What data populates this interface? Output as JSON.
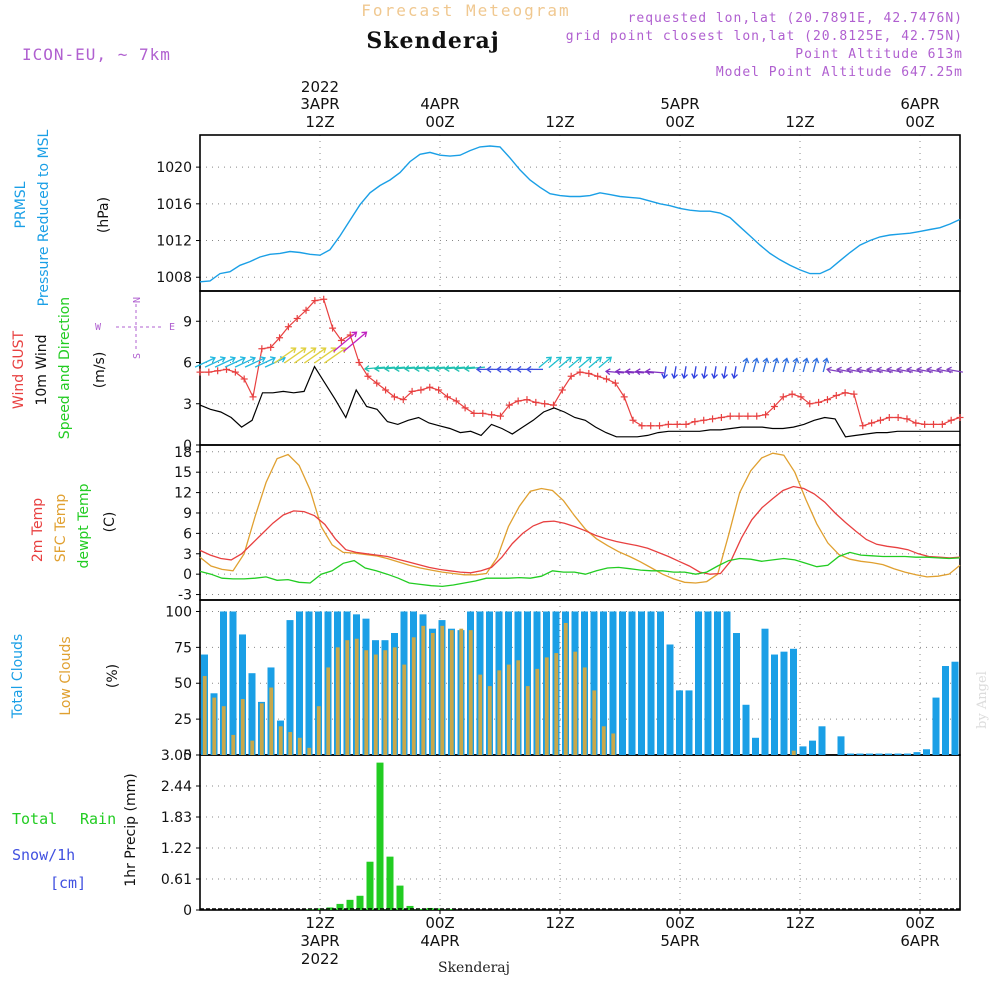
{
  "header": {
    "forecast_title": "Forecast Meteogram",
    "location": "Skenderaj",
    "model": "ICON-EU, ~ 7km",
    "requested": "requested lon,lat (20.7891E, 42.7476N)",
    "gridpoint": "grid point closest lon,lat (20.8125E, 42.75N)",
    "point_alt": "Point Altitude 613m",
    "model_alt": "Model Point Altitude 647.25m",
    "footer": "Skenderaj",
    "credit": "by Angel"
  },
  "colors": {
    "pressure": "#1a9fe6",
    "gust": "#e84040",
    "wind": "#000000",
    "green": "#22cc22",
    "orange": "#e0a030",
    "purple": "#b060d0",
    "blue_text": "#4050e0",
    "cloud_total": "#1a9fe6",
    "cloud_low": "#c8a84a",
    "rain": "#22cc22"
  },
  "time_axis": {
    "top_labels": [
      {
        "t": 12,
        "l1": "2022",
        "l2": "3APR",
        "l3": "12Z"
      },
      {
        "t": 24,
        "l1": "",
        "l2": "4APR",
        "l3": "00Z"
      },
      {
        "t": 36,
        "l1": "",
        "l2": "",
        "l3": "12Z"
      },
      {
        "t": 48,
        "l1": "",
        "l2": "5APR",
        "l3": "00Z"
      },
      {
        "t": 60,
        "l1": "",
        "l2": "",
        "l3": "12Z"
      },
      {
        "t": 72,
        "l1": "",
        "l2": "6APR",
        "l3": "00Z"
      }
    ],
    "bottom_labels": [
      {
        "t": 12,
        "l1": "12Z",
        "l2": "3APR",
        "l3": "2022"
      },
      {
        "t": 24,
        "l1": "00Z",
        "l2": "4APR",
        "l3": ""
      },
      {
        "t": 36,
        "l1": "12Z",
        "l2": "",
        "l3": ""
      },
      {
        "t": 48,
        "l1": "00Z",
        "l2": "5APR",
        "l3": ""
      },
      {
        "t": 60,
        "l1": "12Z",
        "l2": "",
        "l3": ""
      },
      {
        "t": 72,
        "l1": "00Z",
        "l2": "6APR",
        "l3": ""
      }
    ]
  },
  "panel_labels": {
    "pressure": [
      "PRMSL",
      "Pressure Reduced to MSL",
      "(hPa)"
    ],
    "wind": [
      "Wind GUST",
      "10m Wind",
      "Speed and Direction",
      "(m/s)"
    ],
    "compass": [
      "N",
      "W",
      "E",
      "S"
    ],
    "temp": [
      "2m Temp",
      "SFC Temp",
      "dewpt Temp",
      "(C)"
    ],
    "cloud": [
      "Total Clouds",
      "Low Clouds",
      "(%)"
    ],
    "rain": [
      "Total",
      "Rain",
      "Snow/1h",
      "[cm]",
      "1hr Precip (mm)"
    ]
  },
  "chart_data": [
    {
      "type": "line",
      "name": "pressure",
      "x_hours_from_start": "0..76",
      "ylim": [
        1006.5,
        1023.5
      ],
      "yticks": [
        "1008",
        "1012",
        "1016",
        "1020"
      ],
      "series": [
        {
          "name": "PRMSL",
          "values": [
            1007.5,
            1007.6,
            1008.4,
            1008.6,
            1009.3,
            1009.7,
            1010.2,
            1010.5,
            1010.6,
            1010.8,
            1010.7,
            1010.5,
            1010.4,
            1011.0,
            1012.5,
            1014.2,
            1015.9,
            1017.2,
            1018.0,
            1018.6,
            1019.4,
            1020.6,
            1021.4,
            1021.6,
            1021.3,
            1021.2,
            1021.3,
            1021.8,
            1022.2,
            1022.3,
            1022.2,
            1021.0,
            1019.7,
            1018.6,
            1017.8,
            1017.1,
            1016.9,
            1016.8,
            1016.8,
            1016.9,
            1017.2,
            1017.0,
            1016.8,
            1016.7,
            1016.6,
            1016.3,
            1016.0,
            1015.8,
            1015.5,
            1015.3,
            1015.2,
            1015.2,
            1015.0,
            1014.5,
            1013.5,
            1012.5,
            1011.5,
            1010.6,
            1009.9,
            1009.3,
            1008.8,
            1008.4,
            1008.4,
            1008.9,
            1009.8,
            1010.7,
            1011.5,
            1012.0,
            1012.4,
            1012.6,
            1012.7,
            1012.8,
            1013.0,
            1013.2,
            1013.4,
            1013.8,
            1014.3
          ]
        }
      ]
    },
    {
      "type": "line",
      "name": "wind",
      "ylim": [
        0,
        11.2
      ],
      "yticks": [
        "0",
        "3",
        "6",
        "9"
      ],
      "series": [
        {
          "name": "Wind GUST",
          "values": [
            5.3,
            5.3,
            5.4,
            5.5,
            5.3,
            4.8,
            3.5,
            7.0,
            7.1,
            7.8,
            8.6,
            9.2,
            9.8,
            10.5,
            10.6,
            8.5,
            7.6,
            8.0,
            6.0,
            5.0,
            4.5,
            4.0,
            3.5,
            3.3,
            3.9,
            4.0,
            4.2,
            4.0,
            3.5,
            3.2,
            2.7,
            2.3,
            2.3,
            2.2,
            2.1,
            2.9,
            3.2,
            3.3,
            3.1,
            3.0,
            2.9,
            4.0,
            5.0,
            5.3,
            5.2,
            5.0,
            4.8,
            4.5,
            3.5,
            1.8,
            1.4,
            1.4,
            1.4,
            1.5,
            1.5,
            1.5,
            1.7,
            1.8,
            1.9,
            2.0,
            2.1,
            2.1,
            2.1,
            2.1,
            2.2,
            2.8,
            3.5,
            3.7,
            3.5,
            3.0,
            3.1,
            3.3,
            3.6,
            3.8,
            3.7,
            1.4,
            1.6,
            1.8,
            2.0,
            2.0,
            1.9,
            1.6,
            1.5,
            1.5,
            1.5,
            1.8,
            2.0
          ]
        },
        {
          "name": "10m Wind",
          "values": [
            2.9,
            2.6,
            2.4,
            2.0,
            1.3,
            1.8,
            3.8,
            3.8,
            3.9,
            3.8,
            3.9,
            5.7,
            4.5,
            3.3,
            2.0,
            4.0,
            2.8,
            2.6,
            1.7,
            1.5,
            1.8,
            2.0,
            1.6,
            1.4,
            1.2,
            0.9,
            1.0,
            0.7,
            1.5,
            1.2,
            0.8,
            1.3,
            1.8,
            2.4,
            2.7,
            2.4,
            2.0,
            1.8,
            1.3,
            0.9,
            0.6,
            0.6,
            0.6,
            0.7,
            0.9,
            1.0,
            1.0,
            1.0,
            1.0,
            1.1,
            1.1,
            1.2,
            1.3,
            1.3,
            1.3,
            1.2,
            1.2,
            1.3,
            1.5,
            1.8,
            2.0,
            1.9,
            0.6,
            0.7,
            0.8,
            0.9,
            0.9,
            1.0,
            1.0,
            1.0,
            1.0,
            1.0,
            1.0,
            1.0
          ]
        }
      ]
    },
    {
      "type": "line",
      "name": "temperature",
      "ylim": [
        -3.8,
        19
      ],
      "yticks": [
        "-3",
        "0",
        "3",
        "6",
        "9",
        "12",
        "15",
        "18"
      ],
      "series": [
        {
          "name": "2m Temp",
          "values": [
            3.5,
            2.8,
            2.3,
            2.1,
            3.0,
            4.5,
            6.0,
            7.5,
            8.7,
            9.3,
            9.2,
            8.6,
            7.3,
            5.2,
            3.6,
            3.2,
            3.0,
            2.8,
            2.6,
            2.2,
            1.8,
            1.4,
            1.0,
            0.7,
            0.5,
            0.3,
            0.2,
            0.5,
            1.0,
            2.5,
            4.5,
            6.0,
            7.1,
            7.7,
            7.8,
            7.5,
            7.0,
            6.4,
            5.7,
            5.2,
            4.8,
            4.5,
            4.2,
            3.8,
            3.2,
            2.6,
            1.9,
            1.2,
            0.3,
            0.0,
            0.1,
            2.0,
            5.3,
            8.0,
            9.8,
            11.1,
            12.3,
            12.9,
            12.6,
            11.8,
            10.6,
            9.0,
            7.6,
            6.3,
            5.1,
            4.4,
            4.1,
            3.9,
            3.6,
            3.0,
            2.6,
            2.5,
            2.4,
            2.5
          ]
        },
        {
          "name": "SFC Temp",
          "values": [
            2.5,
            1.2,
            0.7,
            0.5,
            3.0,
            8.5,
            13.5,
            17.0,
            17.6,
            16.0,
            12.4,
            7.0,
            4.3,
            3.2,
            3.1,
            2.9,
            2.7,
            2.3,
            1.8,
            1.3,
            0.9,
            0.6,
            0.3,
            0.1,
            -0.1,
            -0.1,
            0.1,
            2.5,
            7.0,
            10.0,
            12.2,
            12.6,
            12.3,
            10.8,
            8.6,
            6.6,
            5.2,
            4.2,
            3.3,
            2.6,
            1.8,
            0.9,
            0.0,
            -0.7,
            -1.2,
            -1.3,
            -1.1,
            0.0,
            5.8,
            12.0,
            15.2,
            17.1,
            17.8,
            17.5,
            15.0,
            11.0,
            7.4,
            4.6,
            2.9,
            2.2,
            1.9,
            1.7,
            1.4,
            0.8,
            0.3,
            -0.1,
            -0.4,
            -0.3,
            0.0,
            1.3
          ]
        },
        {
          "name": "dewpt Temp",
          "values": [
            0.4,
            0.0,
            -0.6,
            -0.7,
            -0.7,
            -0.6,
            -0.4,
            -0.9,
            -0.8,
            -1.2,
            -1.3,
            0.0,
            0.5,
            1.6,
            2.0,
            0.9,
            0.5,
            0.0,
            -0.6,
            -1.3,
            -1.5,
            -1.7,
            -1.8,
            -1.6,
            -1.3,
            -1.0,
            -0.6,
            -0.6,
            -0.6,
            -0.5,
            -0.6,
            -0.3,
            0.5,
            0.3,
            0.3,
            0.0,
            0.5,
            0.9,
            1.0,
            0.8,
            0.6,
            0.5,
            0.5,
            0.3,
            0.3,
            0.0,
            0.3,
            1.2,
            2.0,
            2.3,
            2.2,
            1.9,
            2.1,
            2.3,
            2.1,
            1.6,
            1.1,
            1.3,
            2.6,
            3.2,
            2.8,
            2.7,
            2.6,
            2.6,
            2.6,
            2.5,
            2.5,
            2.4,
            2.3,
            2.4
          ]
        }
      ]
    },
    {
      "type": "bar",
      "name": "clouds",
      "ylim": [
        0,
        108
      ],
      "yticks": [
        "0",
        "25",
        "50",
        "75",
        "100"
      ],
      "series": [
        {
          "name": "Total Clouds",
          "values": [
            70,
            43,
            100,
            100,
            84,
            57,
            37,
            61,
            24,
            94,
            100,
            100,
            100,
            100,
            100,
            100,
            98,
            95,
            80,
            80,
            85,
            100,
            100,
            98,
            88,
            94,
            88,
            87,
            100,
            100,
            100,
            100,
            100,
            100,
            100,
            100,
            100,
            100,
            100,
            100,
            100,
            100,
            100,
            100,
            100,
            100,
            100,
            100,
            100,
            77,
            45,
            45,
            100,
            100,
            100,
            100,
            85,
            35,
            12,
            88,
            70,
            72,
            74,
            6,
            10,
            20,
            0,
            13,
            1,
            1,
            1,
            1,
            1,
            1,
            1,
            2,
            4,
            40,
            62,
            65
          ]
        },
        {
          "name": "Low Clouds",
          "values": [
            55,
            40,
            34,
            14,
            39,
            10,
            36,
            47,
            20,
            16,
            12,
            5,
            34,
            61,
            75,
            80,
            81,
            73,
            70,
            73,
            75,
            63,
            82,
            90,
            85,
            90,
            87,
            88,
            87,
            56,
            48,
            59,
            63,
            66,
            48,
            60,
            68,
            71,
            92,
            72,
            61,
            45,
            20,
            15,
            0,
            0,
            0,
            0,
            0,
            0,
            0,
            0,
            0,
            0,
            0,
            0,
            0,
            0,
            0,
            0,
            0,
            0,
            3,
            0,
            0,
            0,
            0,
            0,
            0,
            0,
            0,
            0,
            0,
            0,
            0,
            0,
            0,
            0,
            0,
            0
          ]
        }
      ]
    },
    {
      "type": "bar",
      "name": "precipitation",
      "ylim": [
        0,
        3.05
      ],
      "yticks": [
        "0",
        "0.61",
        "1.22",
        "1.83",
        "2.44",
        "3.05"
      ],
      "series": [
        {
          "name": "Rain",
          "values": [
            0,
            0,
            0,
            0,
            0,
            0,
            0,
            0.01,
            0.03,
            0.05,
            0.12,
            0.2,
            0.28,
            0.95,
            2.9,
            1.05,
            0.48,
            0.08,
            0.02,
            0.04,
            0.03,
            0.02,
            0,
            0,
            0
          ]
        }
      ]
    }
  ]
}
